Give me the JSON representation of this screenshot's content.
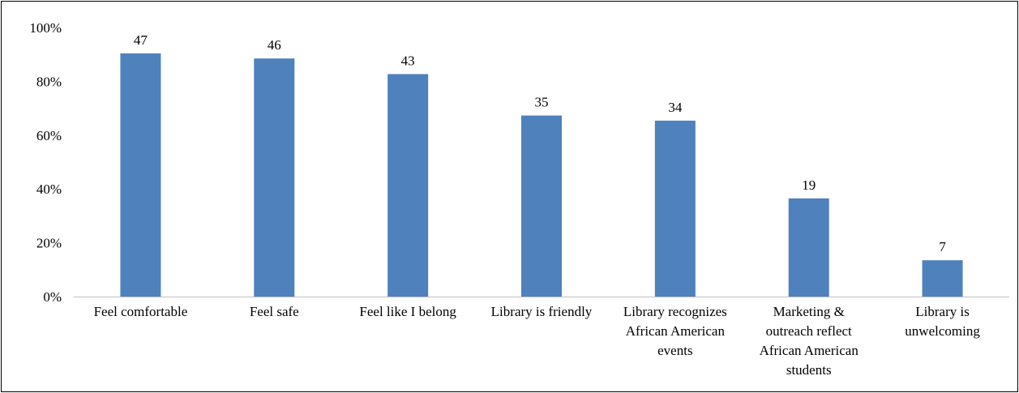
{
  "chart_data": {
    "type": "bar",
    "categories": [
      [
        "Feel comfortable"
      ],
      [
        "Feel safe"
      ],
      [
        "Feel like I belong"
      ],
      [
        "Library is friendly"
      ],
      [
        "Library recognizes",
        "African American",
        "events"
      ],
      [
        "Marketing &",
        "outreach reflect",
        "African American",
        "students"
      ],
      [
        "Library is",
        "unwelcoming"
      ]
    ],
    "values": [
      90.4,
      88.5,
      82.7,
      67.3,
      65.4,
      36.5,
      13.5
    ],
    "data_labels": [
      "47",
      "46",
      "43",
      "35",
      "34",
      "19",
      "7"
    ],
    "yticks": [
      "0%",
      "20%",
      "40%",
      "60%",
      "80%",
      "100%"
    ],
    "ylim": [
      0,
      100
    ],
    "grid": false,
    "bar_color": "#4F81BD"
  }
}
